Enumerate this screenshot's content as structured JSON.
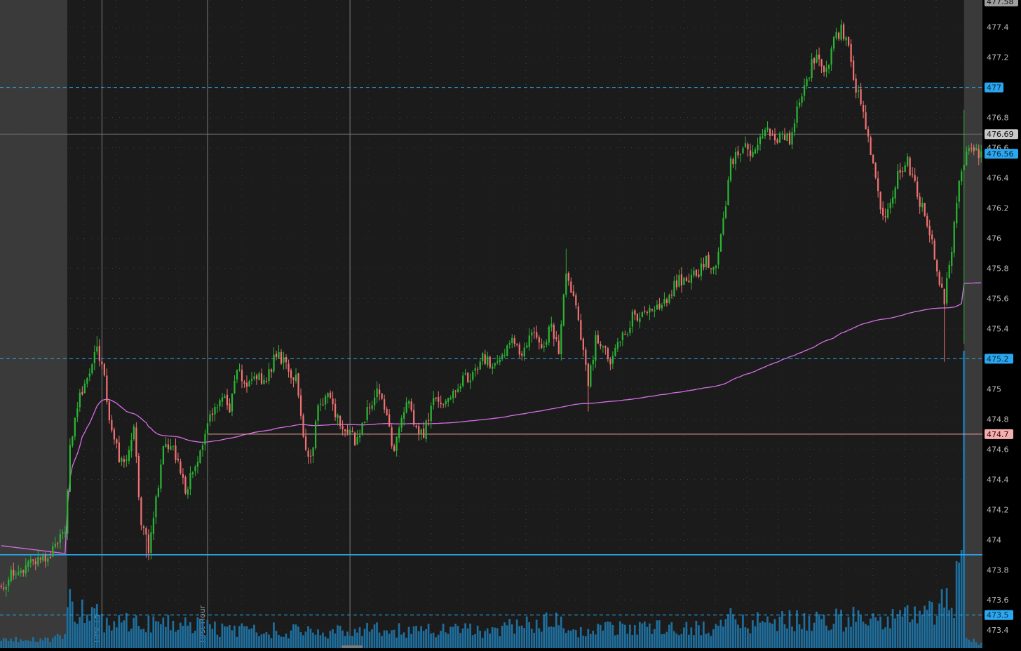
{
  "chart_data": {
    "type": "candlestick",
    "theme": {
      "background": "#1b1b1b",
      "extended_hours_background": "#3a3a3a",
      "axis_background": "#000000",
      "grid_dot_color": "#3c3c3c",
      "up_color": "#2bb534",
      "down_color": "#f07272",
      "vwap_color": "#d66ee6",
      "volume_color": "#1f6f9e",
      "level_line_color": "#2aa7f0",
      "crosshair_color": "#7a7a7a",
      "price_label_text": "#dcdcdc"
    },
    "y_axis": {
      "position": "right",
      "range": [
        473.28,
        477.58
      ],
      "ticks": [
        473.4,
        473.6,
        473.8,
        474,
        474.2,
        474.4,
        474.6,
        474.8,
        475,
        475.2,
        475.4,
        475.6,
        475.8,
        476,
        476.2,
        476.4,
        476.6,
        476.8,
        477,
        477.2,
        477.4
      ],
      "tick_labels": [
        "473.4",
        "473.6",
        "473.8",
        "474",
        "474.2",
        "474.4",
        "474.6",
        "474.8",
        "475",
        "475.2",
        "475.4",
        "475.6",
        "475.8",
        "476",
        "476.2",
        "476.4",
        "476.6",
        "476.8",
        "477",
        "477.2",
        "477.4"
      ],
      "top_label": "477.58"
    },
    "bar_count": 400,
    "premarket_bars": 27,
    "postmarket_start_bar": 393,
    "vertical_markers": [
      {
        "bar": 41,
        "label": "First 15"
      },
      {
        "bar": 84,
        "label": "First Hour"
      },
      {
        "bar": 142,
        "label": ""
      }
    ],
    "horizontal_levels": [
      {
        "price": 477,
        "label": "477",
        "style": "dashed",
        "color": "#2aa7f0",
        "label_bg": "#2aa7f0",
        "label_fg": "#0b2a3a"
      },
      {
        "price": 475.2,
        "label": "475.2",
        "style": "dashed",
        "color": "#2aa7f0",
        "label_bg": "#2aa7f0",
        "label_fg": "#0b2a3a"
      },
      {
        "price": 473.5,
        "label": "473.5",
        "style": "dashed",
        "color": "#2aa7f0",
        "label_bg": "#2aa7f0",
        "label_fg": "#0b2a3a"
      },
      {
        "price": 473.9,
        "label": "",
        "style": "solid",
        "color": "#2aa7f0"
      },
      {
        "price": 474.7,
        "label": "474.7",
        "style": "solid",
        "color": "#f2a9a9",
        "start_bar": 84,
        "label_bg": "#f3b0b0",
        "label_fg": "#3a0000"
      },
      {
        "price": 476.69,
        "label": "476.69",
        "style": "solid",
        "color": "#6e6e6e",
        "label_bg": "#c9c9c9",
        "label_fg": "#111111"
      }
    ],
    "last_price": {
      "price": 476.56,
      "label": "476.56",
      "label_bg": "#2aa7f0",
      "label_fg": "#0b2a3a"
    },
    "anchors": [
      [
        0,
        473.7
      ],
      [
        8,
        473.82
      ],
      [
        14,
        473.86
      ],
      [
        20,
        473.92
      ],
      [
        26,
        474.05
      ],
      [
        28,
        474.6
      ],
      [
        30,
        474.85
      ],
      [
        33,
        475.0
      ],
      [
        36,
        475.1
      ],
      [
        39,
        475.3
      ],
      [
        42,
        475.05
      ],
      [
        45,
        474.7
      ],
      [
        48,
        474.55
      ],
      [
        51,
        474.5
      ],
      [
        54,
        474.75
      ],
      [
        57,
        474.1
      ],
      [
        60,
        473.95
      ],
      [
        63,
        474.25
      ],
      [
        66,
        474.6
      ],
      [
        69,
        474.65
      ],
      [
        72,
        474.5
      ],
      [
        75,
        474.3
      ],
      [
        78,
        474.45
      ],
      [
        81,
        474.6
      ],
      [
        84,
        474.8
      ],
      [
        87,
        474.9
      ],
      [
        90,
        474.95
      ],
      [
        93,
        474.85
      ],
      [
        96,
        475.15
      ],
      [
        100,
        475.0
      ],
      [
        104,
        475.1
      ],
      [
        108,
        475.05
      ],
      [
        112,
        475.25
      ],
      [
        116,
        475.15
      ],
      [
        120,
        475.05
      ],
      [
        123,
        474.65
      ],
      [
        126,
        474.55
      ],
      [
        129,
        474.85
      ],
      [
        133,
        474.95
      ],
      [
        137,
        474.8
      ],
      [
        141,
        474.7
      ],
      [
        145,
        474.65
      ],
      [
        149,
        474.85
      ],
      [
        153,
        475.0
      ],
      [
        157,
        474.85
      ],
      [
        160,
        474.55
      ],
      [
        163,
        474.85
      ],
      [
        166,
        474.95
      ],
      [
        169,
        474.7
      ],
      [
        172,
        474.7
      ],
      [
        176,
        474.9
      ],
      [
        180,
        474.9
      ],
      [
        184,
        475.0
      ],
      [
        188,
        475.05
      ],
      [
        192,
        475.1
      ],
      [
        196,
        475.2
      ],
      [
        200,
        475.15
      ],
      [
        204,
        475.25
      ],
      [
        208,
        475.3
      ],
      [
        212,
        475.2
      ],
      [
        216,
        475.35
      ],
      [
        220,
        475.3
      ],
      [
        224,
        475.4
      ],
      [
        227,
        475.25
      ],
      [
        230,
        475.8
      ],
      [
        233,
        475.6
      ],
      [
        236,
        475.35
      ],
      [
        239,
        475.0
      ],
      [
        242,
        475.35
      ],
      [
        245,
        475.25
      ],
      [
        248,
        475.2
      ],
      [
        251,
        475.35
      ],
      [
        254,
        475.35
      ],
      [
        257,
        475.5
      ],
      [
        260,
        475.45
      ],
      [
        263,
        475.5
      ],
      [
        267,
        475.55
      ],
      [
        271,
        475.6
      ],
      [
        275,
        475.7
      ],
      [
        279,
        475.75
      ],
      [
        283,
        475.75
      ],
      [
        287,
        475.85
      ],
      [
        291,
        475.8
      ],
      [
        294,
        476.1
      ],
      [
        297,
        476.5
      ],
      [
        300,
        476.55
      ],
      [
        303,
        476.6
      ],
      [
        306,
        476.55
      ],
      [
        309,
        476.7
      ],
      [
        312,
        476.75
      ],
      [
        315,
        476.65
      ],
      [
        318,
        476.7
      ],
      [
        321,
        476.65
      ],
      [
        324,
        476.85
      ],
      [
        327,
        477.0
      ],
      [
        330,
        477.15
      ],
      [
        333,
        477.2
      ],
      [
        336,
        477.1
      ],
      [
        339,
        477.3
      ],
      [
        342,
        477.4
      ],
      [
        345,
        477.25
      ],
      [
        348,
        477.0
      ],
      [
        351,
        476.85
      ],
      [
        354,
        476.55
      ],
      [
        357,
        476.3
      ],
      [
        360,
        476.1
      ],
      [
        363,
        476.3
      ],
      [
        366,
        476.45
      ],
      [
        369,
        476.5
      ],
      [
        372,
        476.35
      ],
      [
        375,
        476.2
      ],
      [
        378,
        476.05
      ],
      [
        381,
        475.75
      ],
      [
        384,
        475.6
      ],
      [
        387,
        475.95
      ],
      [
        390,
        476.35
      ],
      [
        393,
        476.55
      ],
      [
        396,
        476.6
      ],
      [
        399,
        476.56
      ]
    ],
    "volume_envelope": [
      [
        0,
        0.08
      ],
      [
        26,
        0.12
      ],
      [
        27,
        0.65
      ],
      [
        30,
        0.4
      ],
      [
        40,
        0.3
      ],
      [
        60,
        0.25
      ],
      [
        84,
        0.22
      ],
      [
        100,
        0.18
      ],
      [
        200,
        0.18
      ],
      [
        228,
        0.28
      ],
      [
        232,
        0.18
      ],
      [
        290,
        0.22
      ],
      [
        297,
        0.35
      ],
      [
        300,
        0.25
      ],
      [
        340,
        0.28
      ],
      [
        348,
        0.35
      ],
      [
        355,
        0.3
      ],
      [
        380,
        0.35
      ],
      [
        388,
        0.55
      ],
      [
        392,
        0.85
      ],
      [
        393,
        0.08
      ],
      [
        399,
        0.06
      ]
    ],
    "volume_spike_bar": 392
  }
}
